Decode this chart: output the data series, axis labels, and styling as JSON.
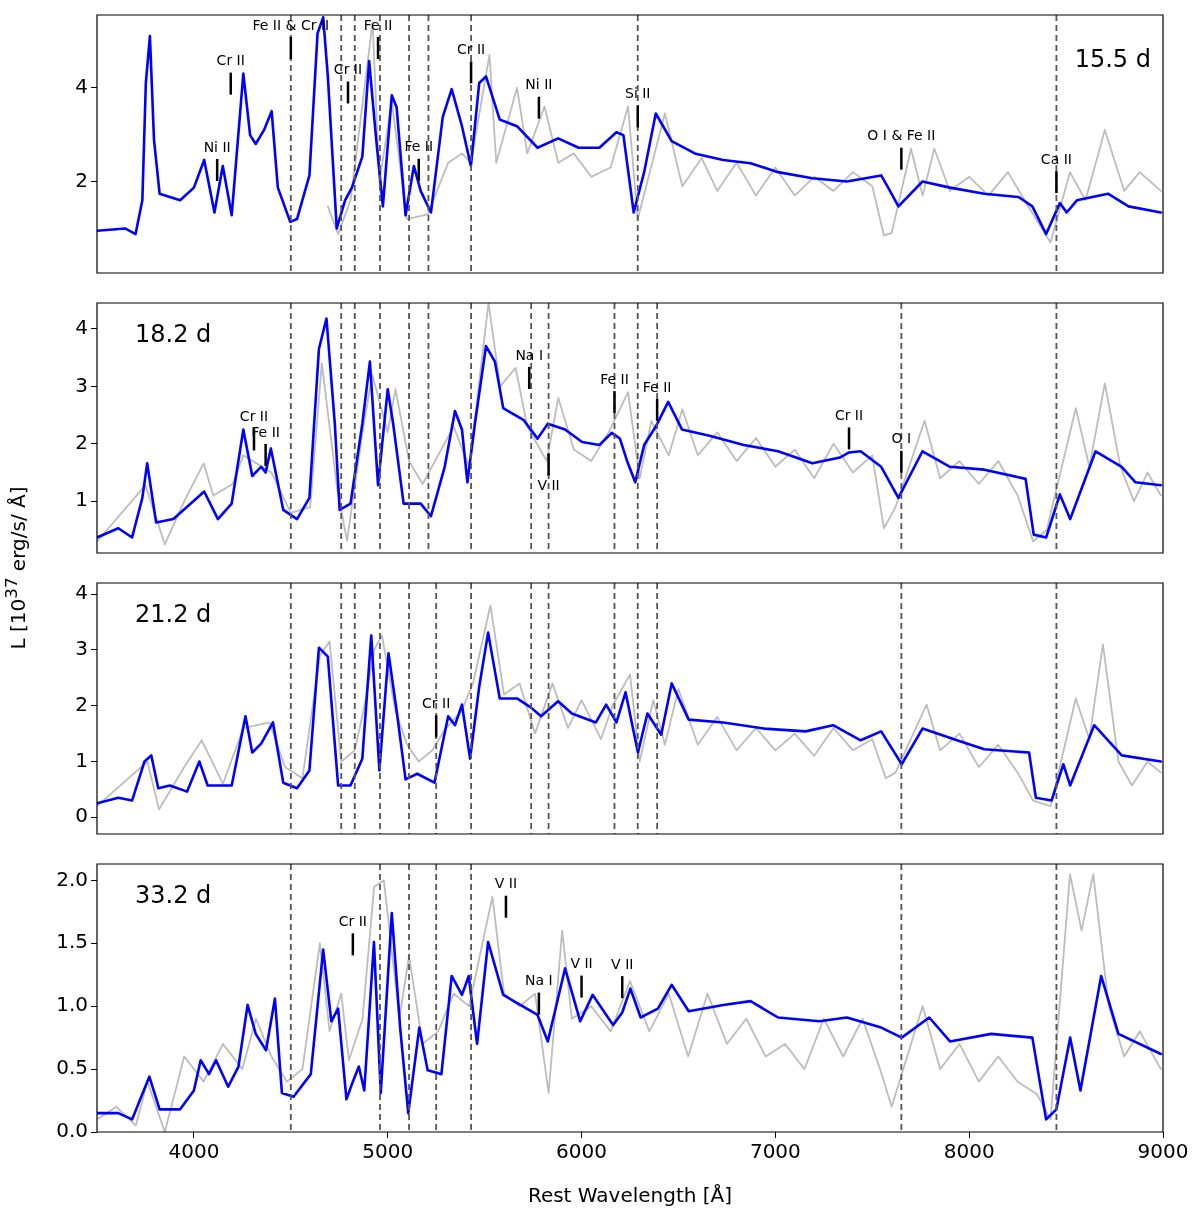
{
  "chart_data": [
    {
      "type": "line",
      "title": "15.5 d",
      "xlim": [
        3500,
        9000
      ],
      "xticks": [
        4000,
        5000,
        6000,
        7000,
        8000,
        9000
      ],
      "ylim": [
        0.05,
        5.55
      ],
      "yticks": [
        2,
        4
      ],
      "tick_labels": "y",
      "series": [
        {
          "color": "#0000ff",
          "x": [
            3500,
            3645,
            3699,
            3734,
            3752,
            3773,
            3794,
            3823,
            3929,
            4000,
            4053,
            4106,
            4149,
            4195,
            4255,
            4290,
            4319,
            4362,
            4401,
            4433,
            4497,
            4532,
            4596,
            4638,
            4667,
            4691,
            4737,
            4780,
            4815,
            4869,
            4904,
            4940,
            4975,
            5021,
            5046,
            5092,
            5135,
            5170,
            5223,
            5284,
            5330,
            5383,
            5429,
            5472,
            5507,
            5578,
            5667,
            5773,
            5879,
            5985,
            6092,
            6180,
            6216,
            6269,
            6323,
            6383,
            6465,
            6589,
            6731,
            6872,
            7014,
            7191,
            7369,
            7546,
            7582,
            7635,
            7759,
            7901,
            8078,
            8255,
            8326,
            8397,
            8468,
            8503,
            8556,
            8716,
            8822,
            8989
          ],
          "values": [
            0.95,
            1.0,
            0.88,
            1.6,
            4.1,
            5.1,
            2.9,
            1.74,
            1.6,
            1.87,
            2.46,
            1.34,
            2.33,
            1.28,
            4.3,
            2.99,
            2.8,
            3.1,
            3.5,
            1.87,
            1.14,
            1.2,
            2.13,
            5.16,
            5.5,
            4.24,
            1.0,
            1.6,
            1.87,
            2.53,
            4.57,
            2.92,
            1.47,
            3.84,
            3.58,
            1.28,
            2.33,
            1.8,
            1.34,
            3.38,
            3.97,
            3.18,
            2.33,
            4.1,
            4.24,
            3.32,
            3.18,
            2.72,
            2.92,
            2.72,
            2.72,
            3.05,
            2.99,
            1.34,
            2.2,
            3.45,
            2.86,
            2.59,
            2.46,
            2.39,
            2.2,
            2.07,
            2.0,
            2.13,
            1.87,
            1.47,
            2.0,
            1.87,
            1.74,
            1.67,
            1.47,
            0.88,
            1.54,
            1.34,
            1.6,
            1.74,
            1.47,
            1.34
          ]
        },
        {
          "color": "#bdbdbd",
          "x": [
            4691,
            4744,
            4808,
            4922,
            4957,
            5021,
            5099,
            5206,
            5312,
            5383,
            5429,
            5525,
            5560,
            5667,
            5720,
            5809,
            5880,
            5960,
            6050,
            6150,
            6240,
            6290,
            6430,
            6520,
            6620,
            6700,
            6800,
            6900,
            7000,
            7100,
            7200,
            7300,
            7400,
            7500,
            7560,
            7600,
            7700,
            7760,
            7820,
            7900,
            8000,
            8100,
            8200,
            8300,
            8420,
            8520,
            8600,
            8700,
            8800,
            8880,
            8989
          ],
          "values": [
            1.47,
            0.88,
            1.6,
            5.4,
            2.0,
            3.7,
            1.2,
            1.3,
            2.4,
            2.6,
            2.4,
            4.7,
            2.4,
            4.0,
            2.6,
            3.6,
            2.4,
            2.6,
            2.1,
            2.3,
            3.6,
            1.2,
            3.45,
            1.9,
            2.5,
            1.8,
            2.4,
            1.7,
            2.3,
            1.7,
            2.1,
            1.8,
            2.2,
            1.9,
            0.85,
            0.9,
            2.7,
            1.7,
            2.7,
            1.8,
            2.1,
            1.7,
            2.2,
            1.5,
            0.7,
            2.2,
            1.6,
            3.1,
            1.8,
            2.2,
            1.8
          ]
        }
      ],
      "ref_lines": [
        {
          "axis": "x",
          "value": 4500,
          "color": "#555555",
          "line_style": "dashed"
        },
        {
          "axis": "x",
          "value": 4760,
          "color": "#555555",
          "line_style": "dashed"
        },
        {
          "axis": "x",
          "value": 4830,
          "color": "#555555",
          "line_style": "dashed"
        },
        {
          "axis": "x",
          "value": 4960,
          "color": "#555555",
          "line_style": "dashed"
        },
        {
          "axis": "x",
          "value": 5110,
          "color": "#555555",
          "line_style": "dashed"
        },
        {
          "axis": "x",
          "value": 5210,
          "color": "#555555",
          "line_style": "dashed"
        },
        {
          "axis": "x",
          "value": 5430,
          "color": "#555555",
          "line_style": "dashed"
        },
        {
          "axis": "x",
          "value": 6290,
          "color": "#555555",
          "line_style": "dashed"
        },
        {
          "axis": "x",
          "value": 8450,
          "color": "#555555",
          "line_style": "dashed"
        }
      ],
      "annotations": [
        {
          "text": "Cr II",
          "x": 4190
        },
        {
          "text": "Fe II & Cr II",
          "x": 4500
        },
        {
          "text": "Cr II",
          "x": 4795
        },
        {
          "text": "Fe II",
          "x": 5160
        },
        {
          "text": "Cr II",
          "x": 5430
        },
        {
          "text": "Ni II",
          "x": 5780
        },
        {
          "text": "Si II",
          "x": 6290
        },
        {
          "text": "O I & Fe II",
          "x": 7650
        },
        {
          "text": "Ca II",
          "x": 8450
        },
        {
          "text": "Ni II",
          "x": 4120
        },
        {
          "text": "Fe II",
          "x": 4950
        }
      ]
    },
    {
      "type": "line",
      "title": "18.2 d",
      "ylabel": "L [10$^{37}$ erg/s/ Å]",
      "xlim": [
        3500,
        9000
      ],
      "xticks": [
        4000,
        5000,
        6000,
        7000,
        8000,
        9000
      ],
      "ylim": [
        0.1,
        4.45
      ],
      "yticks": [
        1,
        2,
        3,
        4
      ],
      "tick_labels": "y",
      "series": [
        {
          "color": "#0000ff",
          "x": [
            3500,
            3610,
            3681,
            3734,
            3759,
            3805,
            3894,
            4000,
            4053,
            4124,
            4195,
            4255,
            4301,
            4347,
            4370,
            4397,
            4461,
            4532,
            4596,
            4645,
            4684,
            4727,
            4752,
            4808,
            4869,
            4908,
            4950,
            5000,
            5028,
            5082,
            5170,
            5223,
            5294,
            5347,
            5383,
            5411,
            5450,
            5507,
            5553,
            5596,
            5702,
            5773,
            5826,
            5915,
            6003,
            6092,
            6156,
            6198,
            6234,
            6277,
            6323,
            6383,
            6447,
            6518,
            6660,
            6837,
            7014,
            7191,
            7333,
            7380,
            7440,
            7546,
            7635,
            7759,
            7901,
            8078,
            8291,
            8333,
            8397,
            8468,
            8521,
            8652,
            8787,
            8858,
            8989
          ],
          "values": [
            0.37,
            0.53,
            0.37,
            1.06,
            1.66,
            0.63,
            0.69,
            1.01,
            1.17,
            0.69,
            0.96,
            2.25,
            1.44,
            1.6,
            1.5,
            1.92,
            0.85,
            0.69,
            1.06,
            3.65,
            4.18,
            2.35,
            0.85,
            0.96,
            2.35,
            3.43,
            1.28,
            2.95,
            2.35,
            0.96,
            0.96,
            0.74,
            1.6,
            2.57,
            2.25,
            1.33,
            2.35,
            3.7,
            3.43,
            2.62,
            2.41,
            2.09,
            2.35,
            2.25,
            2.03,
            1.98,
            2.19,
            2.09,
            1.71,
            1.33,
            1.98,
            2.3,
            2.73,
            2.25,
            2.14,
            1.98,
            1.87,
            1.66,
            1.76,
            1.85,
            1.87,
            1.6,
            1.06,
            1.87,
            1.6,
            1.55,
            1.39,
            0.42,
            0.37,
            1.12,
            0.69,
            1.87,
            1.6,
            1.33,
            1.28
          ]
        },
        {
          "color": "#bdbdbd",
          "x": [
            3500,
            3750,
            3850,
            3950,
            4050,
            4100,
            4200,
            4255,
            4400,
            4500,
            4600,
            4660,
            4740,
            4790,
            4870,
            4920,
            5000,
            5040,
            5110,
            5180,
            5260,
            5340,
            5420,
            5520,
            5580,
            5660,
            5720,
            5820,
            5880,
            5960,
            6050,
            6140,
            6240,
            6300,
            6360,
            6450,
            6520,
            6600,
            6700,
            6800,
            6900,
            7000,
            7100,
            7200,
            7300,
            7400,
            7500,
            7560,
            7620,
            7770,
            7850,
            7950,
            8050,
            8150,
            8250,
            8330,
            8400,
            8550,
            8620,
            8700,
            8780,
            8850,
            8920,
            8989
          ],
          "values": [
            0.3,
            1.28,
            0.25,
            1.0,
            1.66,
            1.1,
            1.3,
            1.8,
            1.5,
            0.8,
            0.9,
            3.4,
            1.2,
            0.31,
            2.2,
            3.2,
            2.2,
            2.95,
            1.7,
            1.3,
            1.8,
            2.3,
            1.6,
            4.45,
            3.0,
            3.32,
            2.3,
            1.7,
            2.8,
            1.9,
            1.7,
            2.2,
            2.9,
            1.4,
            2.4,
            1.8,
            2.6,
            1.8,
            2.2,
            1.7,
            2.1,
            1.6,
            1.9,
            1.4,
            2.0,
            1.5,
            1.8,
            0.53,
            0.9,
            2.4,
            1.4,
            1.7,
            1.3,
            1.7,
            1.1,
            0.3,
            0.5,
            2.62,
            1.6,
            3.05,
            1.6,
            1.0,
            1.5,
            1.1
          ]
        }
      ],
      "ref_lines": [
        {
          "axis": "x",
          "value": 4500,
          "color": "#555555",
          "line_style": "dashed"
        },
        {
          "axis": "x",
          "value": 4760,
          "color": "#555555",
          "line_style": "dashed"
        },
        {
          "axis": "x",
          "value": 4830,
          "color": "#555555",
          "line_style": "dashed"
        },
        {
          "axis": "x",
          "value": 4960,
          "color": "#555555",
          "line_style": "dashed"
        },
        {
          "axis": "x",
          "value": 5110,
          "color": "#555555",
          "line_style": "dashed"
        },
        {
          "axis": "x",
          "value": 5210,
          "color": "#555555",
          "line_style": "dashed"
        },
        {
          "axis": "x",
          "value": 5430,
          "color": "#555555",
          "line_style": "dashed"
        },
        {
          "axis": "x",
          "value": 5740,
          "color": "#555555",
          "line_style": "dashed"
        },
        {
          "axis": "x",
          "value": 5830,
          "color": "#555555",
          "line_style": "dashed"
        },
        {
          "axis": "x",
          "value": 6170,
          "color": "#555555",
          "line_style": "dashed"
        },
        {
          "axis": "x",
          "value": 6290,
          "color": "#555555",
          "line_style": "dashed"
        },
        {
          "axis": "x",
          "value": 6390,
          "color": "#555555",
          "line_style": "dashed"
        },
        {
          "axis": "x",
          "value": 7650,
          "color": "#555555",
          "line_style": "dashed"
        },
        {
          "axis": "x",
          "value": 8450,
          "color": "#555555",
          "line_style": "dashed"
        }
      ],
      "annotations": [
        {
          "text": "Cr II",
          "x": 4310
        },
        {
          "text": "Fe II",
          "x": 4370
        },
        {
          "text": "Na I",
          "x": 5730
        },
        {
          "text": "V II",
          "x": 5830
        },
        {
          "text": "Fe II",
          "x": 6170
        },
        {
          "text": "Fe II",
          "x": 6390
        },
        {
          "text": "Cr II",
          "x": 7380
        },
        {
          "text": "O I",
          "x": 7650
        }
      ]
    },
    {
      "type": "line",
      "title": "21.2 d",
      "xlim": [
        3500,
        9000
      ],
      "xticks": [
        4000,
        5000,
        6000,
        7000,
        8000,
        9000
      ],
      "ylim": [
        -0.3,
        4.2
      ],
      "yticks": [
        0,
        1,
        2,
        3,
        4
      ],
      "tick_labels": "y",
      "series": [
        {
          "color": "#0000ff",
          "x": [
            3500,
            3610,
            3681,
            3745,
            3780,
            3816,
            3876,
            3965,
            4028,
            4071,
            4195,
            4266,
            4301,
            4347,
            4408,
            4461,
            4532,
            4596,
            4645,
            4691,
            4744,
            4808,
            4869,
            4915,
            4957,
            5004,
            5046,
            5092,
            5152,
            5241,
            5312,
            5347,
            5383,
            5425,
            5472,
            5518,
            5578,
            5667,
            5738,
            5791,
            5879,
            5950,
            6074,
            6127,
            6180,
            6227,
            6291,
            6340,
            6411,
            6465,
            6553,
            6731,
            6943,
            7156,
            7298,
            7440,
            7546,
            7652,
            7759,
            7937,
            8078,
            8309,
            8344,
            8425,
            8486,
            8521,
            8645,
            8787,
            8989
          ],
          "values": [
            0.25,
            0.35,
            0.3,
            1.0,
            1.11,
            0.52,
            0.57,
            0.46,
            1.0,
            0.57,
            0.57,
            1.81,
            1.16,
            1.32,
            1.7,
            0.62,
            0.52,
            0.84,
            3.04,
            2.88,
            0.57,
            0.57,
            1.05,
            3.26,
            0.84,
            2.94,
            1.91,
            0.68,
            0.78,
            0.62,
            1.81,
            1.65,
            2.02,
            1.05,
            2.34,
            3.31,
            2.13,
            2.13,
            1.97,
            1.81,
            2.08,
            1.86,
            1.7,
            2.02,
            1.7,
            2.24,
            1.16,
            1.86,
            1.48,
            2.4,
            1.75,
            1.7,
            1.59,
            1.54,
            1.65,
            1.38,
            1.54,
            0.95,
            1.59,
            1.38,
            1.22,
            1.16,
            0.35,
            0.3,
            0.95,
            0.57,
            1.65,
            1.11,
            1.0
          ]
        },
        {
          "color": "#bdbdbd",
          "x": [
            3500,
            3760,
            3820,
            3950,
            4040,
            4150,
            4255,
            4390,
            4470,
            4560,
            4650,
            4700,
            4760,
            4830,
            4880,
            4930,
            4970,
            5040,
            5100,
            5160,
            5230,
            5300,
            5380,
            5440,
            5530,
            5600,
            5680,
            5760,
            5850,
            5930,
            6000,
            6100,
            6160,
            6250,
            6300,
            6370,
            6430,
            6500,
            6600,
            6700,
            6800,
            6900,
            7000,
            7100,
            7200,
            7300,
            7400,
            7500,
            7570,
            7620,
            7780,
            7850,
            7950,
            8050,
            8150,
            8250,
            8330,
            8420,
            8550,
            8620,
            8690,
            8770,
            8840,
            8920,
            8989
          ],
          "values": [
            0.2,
            1.0,
            0.14,
            0.9,
            1.38,
            0.6,
            1.6,
            1.7,
            0.9,
            0.7,
            2.9,
            3.15,
            1.0,
            1.2,
            2.0,
            3.0,
            3.26,
            1.9,
            1.3,
            1.0,
            1.2,
            1.6,
            1.9,
            2.4,
            3.8,
            2.2,
            2.4,
            1.5,
            2.4,
            1.6,
            2.1,
            1.4,
            2.0,
            2.56,
            1.0,
            2.1,
            1.3,
            2.3,
            1.3,
            1.8,
            1.2,
            1.6,
            1.2,
            1.5,
            1.1,
            1.6,
            1.2,
            1.4,
            0.7,
            0.8,
            2.02,
            1.2,
            1.5,
            0.9,
            1.3,
            0.8,
            0.3,
            0.2,
            2.13,
            1.4,
            3.1,
            1.0,
            0.57,
            1.0,
            0.8
          ]
        }
      ],
      "ref_lines": [
        {
          "axis": "x",
          "value": 4500,
          "color": "#555555",
          "line_style": "dashed"
        },
        {
          "axis": "x",
          "value": 4760,
          "color": "#555555",
          "line_style": "dashed"
        },
        {
          "axis": "x",
          "value": 4830,
          "color": "#555555",
          "line_style": "dashed"
        },
        {
          "axis": "x",
          "value": 4960,
          "color": "#555555",
          "line_style": "dashed"
        },
        {
          "axis": "x",
          "value": 5110,
          "color": "#555555",
          "line_style": "dashed"
        },
        {
          "axis": "x",
          "value": 5250,
          "color": "#555555",
          "line_style": "dashed"
        },
        {
          "axis": "x",
          "value": 5430,
          "color": "#555555",
          "line_style": "dashed"
        },
        {
          "axis": "x",
          "value": 5740,
          "color": "#555555",
          "line_style": "dashed"
        },
        {
          "axis": "x",
          "value": 5830,
          "color": "#555555",
          "line_style": "dashed"
        },
        {
          "axis": "x",
          "value": 6170,
          "color": "#555555",
          "line_style": "dashed"
        },
        {
          "axis": "x",
          "value": 6290,
          "color": "#555555",
          "line_style": "dashed"
        },
        {
          "axis": "x",
          "value": 6390,
          "color": "#555555",
          "line_style": "dashed"
        },
        {
          "axis": "x",
          "value": 7650,
          "color": "#555555",
          "line_style": "dashed"
        },
        {
          "axis": "x",
          "value": 8450,
          "color": "#555555",
          "line_style": "dashed"
        }
      ],
      "annotations": [
        {
          "text": "Cr II",
          "x": 5250
        }
      ]
    },
    {
      "type": "line",
      "title": "33.2 d",
      "xlabel": "Rest Wavelength [Å]",
      "xlim": [
        3500,
        9000
      ],
      "xticks": [
        4000,
        5000,
        6000,
        7000,
        8000,
        9000
      ],
      "ylim": [
        0,
        2.13
      ],
      "yticks": [
        {
          "value": 0,
          "label": "0.0"
        },
        {
          "value": 0.5,
          "label": "0.5"
        },
        {
          "value": 1,
          "label": "1.0"
        },
        {
          "value": 1.5,
          "label": "1.5"
        },
        {
          "value": 2,
          "label": "2.0"
        }
      ],
      "series": [
        {
          "color": "#0000ff",
          "x": [
            3500,
            3610,
            3681,
            3770,
            3823,
            3929,
            4000,
            4035,
            4078,
            4114,
            4177,
            4230,
            4277,
            4319,
            4372,
            4418,
            4454,
            4514,
            4603,
            4667,
            4709,
            4744,
            4787,
            4820,
            4851,
            4879,
            4929,
            4964,
            5021,
            5064,
            5106,
            5163,
            5206,
            5277,
            5330,
            5383,
            5418,
            5461,
            5518,
            5596,
            5684,
            5773,
            5826,
            5915,
            5993,
            6057,
            6163,
            6210,
            6252,
            6305,
            6394,
            6465,
            6553,
            6731,
            6872,
            7014,
            7227,
            7369,
            7546,
            7652,
            7794,
            7901,
            8113,
            8326,
            8397,
            8450,
            8521,
            8574,
            8681,
            8770,
            8989
          ],
          "values": [
            0.15,
            0.15,
            0.1,
            0.44,
            0.18,
            0.18,
            0.33,
            0.57,
            0.46,
            0.57,
            0.36,
            0.52,
            1.01,
            0.78,
            0.65,
            1.06,
            0.31,
            0.28,
            0.46,
            1.45,
            0.88,
            0.98,
            0.26,
            0.4,
            0.52,
            0.33,
            1.51,
            0.31,
            1.74,
            0.83,
            0.15,
            0.83,
            0.49,
            0.46,
            1.24,
            1.09,
            1.24,
            0.7,
            1.51,
            1.09,
            1.01,
            0.93,
            0.72,
            1.3,
            0.88,
            1.09,
            0.85,
            0.95,
            1.14,
            0.91,
            0.98,
            1.17,
            0.96,
            1.01,
            1.04,
            0.91,
            0.88,
            0.91,
            0.83,
            0.75,
            0.91,
            0.72,
            0.78,
            0.75,
            0.1,
            0.18,
            0.75,
            0.33,
            1.24,
            0.78,
            0.62
          ]
        },
        {
          "color": "#bdbdbd",
          "x": [
            3500,
            3600,
            3700,
            3760,
            3850,
            3950,
            4050,
            4150,
            4250,
            4320,
            4400,
            4480,
            4560,
            4650,
            4700,
            4760,
            4800,
            4870,
            4930,
            4980,
            5060,
            5110,
            5180,
            5260,
            5340,
            5420,
            5540,
            5600,
            5680,
            5760,
            5830,
            5900,
            5950,
            6050,
            6150,
            6250,
            6350,
            6450,
            6550,
            6650,
            6750,
            6850,
            6950,
            7050,
            7150,
            7250,
            7350,
            7450,
            7540,
            7600,
            7700,
            7760,
            7850,
            7950,
            8050,
            8150,
            8250,
            8350,
            8420,
            8520,
            8580,
            8640,
            8720,
            8800,
            8880,
            8989
          ],
          "values": [
            0.1,
            0.2,
            0.05,
            0.4,
            0.0,
            0.6,
            0.4,
            0.7,
            0.5,
            0.9,
            0.6,
            0.4,
            0.5,
            1.5,
            0.8,
            1.1,
            0.57,
            0.9,
            1.95,
            2.0,
            0.9,
            1.4,
            0.7,
            0.8,
            1.1,
            1.0,
            1.87,
            1.1,
            1.0,
            1.1,
            0.31,
            1.6,
            0.9,
            1.0,
            0.8,
            1.2,
            0.8,
            1.1,
            0.6,
            1.1,
            0.7,
            0.9,
            0.6,
            0.7,
            0.5,
            0.9,
            0.6,
            0.9,
            0.5,
            0.2,
            0.7,
            1.0,
            0.5,
            0.7,
            0.4,
            0.6,
            0.4,
            0.3,
            0.1,
            2.05,
            1.6,
            2.05,
            1.0,
            0.6,
            0.8,
            0.5
          ]
        }
      ],
      "ref_lines": [
        {
          "axis": "x",
          "value": 4500,
          "color": "#555555",
          "line_style": "dashed"
        },
        {
          "axis": "x",
          "value": 4960,
          "color": "#555555",
          "line_style": "dashed"
        },
        {
          "axis": "x",
          "value": 5110,
          "color": "#555555",
          "line_style": "dashed"
        },
        {
          "axis": "x",
          "value": 5250,
          "color": "#555555",
          "line_style": "dashed"
        },
        {
          "axis": "x",
          "value": 5430,
          "color": "#555555",
          "line_style": "dashed"
        },
        {
          "axis": "x",
          "value": 7650,
          "color": "#555555",
          "line_style": "dashed"
        },
        {
          "axis": "x",
          "value": 8450,
          "color": "#555555",
          "line_style": "dashed"
        }
      ],
      "annotations": [
        {
          "text": "Cr II",
          "x": 4820
        },
        {
          "text": "V II",
          "x": 5610
        },
        {
          "text": "Na I",
          "x": 5780
        },
        {
          "text": "V II",
          "x": 6000
        },
        {
          "text": "V II",
          "x": 6210
        }
      ]
    }
  ]
}
